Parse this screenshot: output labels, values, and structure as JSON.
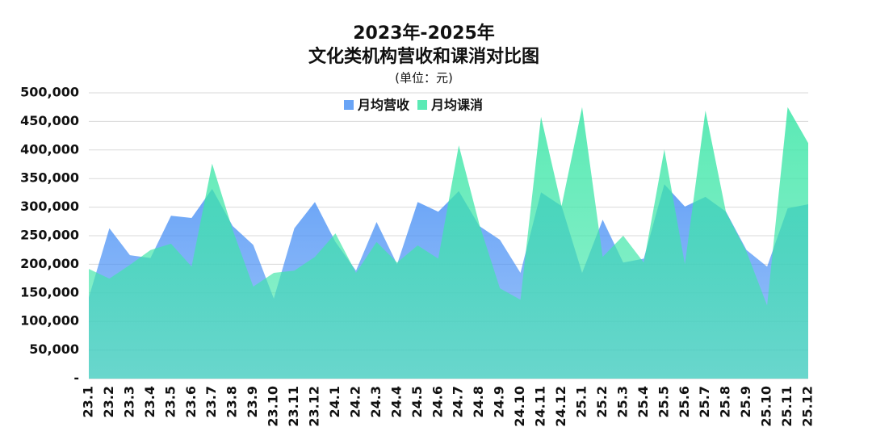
{
  "chart_data": {
    "type": "area",
    "title": "2023年-2025年",
    "subtitle": "文化类机构营收和课消对比图",
    "unit_note": "(单位：元)",
    "categories": [
      "23.1",
      "23.2",
      "23.3",
      "23.4",
      "23.5",
      "23.6",
      "23.7",
      "23.8",
      "23.9",
      "23.10",
      "23.11",
      "23.12",
      "24.1",
      "24.2",
      "24.3",
      "24.4",
      "24.5",
      "24.6",
      "24.7",
      "24.8",
      "24.9",
      "24.10",
      "24.11",
      "24.12",
      "25.1",
      "25.2",
      "25.3",
      "25.4",
      "25.5",
      "25.6",
      "25.7",
      "25.8",
      "25.9",
      "25.10",
      "25.11",
      "25.12"
    ],
    "series": [
      {
        "name": "月均营收",
        "color": "#4f94f5",
        "values": [
          142000,
          263000,
          216000,
          211000,
          285000,
          281000,
          332000,
          267000,
          234000,
          140000,
          263000,
          309000,
          239000,
          189000,
          274000,
          200000,
          309000,
          292000,
          328000,
          267000,
          243000,
          185000,
          326000,
          302000,
          185000,
          278000,
          203000,
          210000,
          340000,
          301000,
          318000,
          292000,
          225000,
          196000,
          298000,
          305000
        ]
      },
      {
        "name": "月均课消",
        "color": "#3ee6a8",
        "values": [
          192000,
          175000,
          199000,
          225000,
          236000,
          196000,
          376000,
          260000,
          161000,
          185000,
          189000,
          213000,
          254000,
          185000,
          239000,
          203000,
          233000,
          210000,
          408000,
          270000,
          158000,
          138000,
          458000,
          302000,
          475000,
          213000,
          250000,
          203000,
          401000,
          200000,
          469000,
          291000,
          222000,
          128000,
          475000,
          412000
        ]
      }
    ],
    "ylim": [
      0,
      500000
    ],
    "yticks": [
      {
        "value": 0,
        "label": "-"
      },
      {
        "value": 50000,
        "label": "50,000"
      },
      {
        "value": 100000,
        "label": "100,000"
      },
      {
        "value": 150000,
        "label": "150,000"
      },
      {
        "value": 200000,
        "label": "200,000"
      },
      {
        "value": 250000,
        "label": "250,000"
      },
      {
        "value": 300000,
        "label": "300,000"
      },
      {
        "value": 350000,
        "label": "350,000"
      },
      {
        "value": 400000,
        "label": "400,000"
      },
      {
        "value": 450000,
        "label": "450,000"
      },
      {
        "value": 500000,
        "label": "500,000"
      }
    ],
    "grid": true,
    "legend": "top"
  }
}
